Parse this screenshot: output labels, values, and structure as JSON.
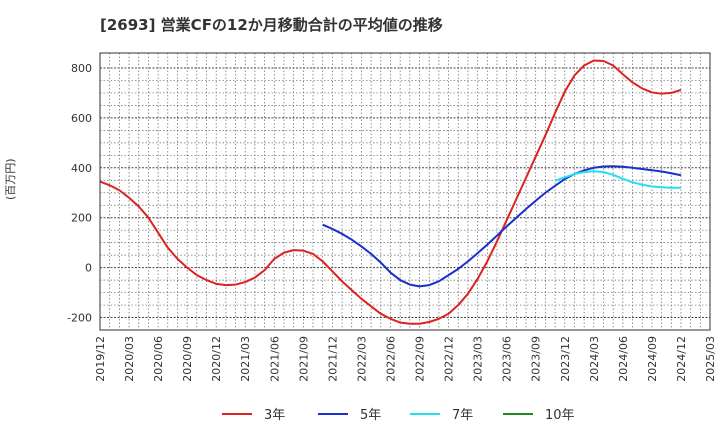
{
  "chart_data": {
    "type": "line",
    "title": "[2693]  営業CFの12か月移動合計の平均値の推移",
    "ylabel": "(百万円)",
    "xlabel": "",
    "ylim": [
      -250,
      860
    ],
    "yticks": [
      -200,
      0,
      200,
      400,
      600,
      800
    ],
    "xticks": [
      "2019/12",
      "2020/03",
      "2020/06",
      "2020/09",
      "2020/12",
      "2021/03",
      "2021/06",
      "2021/09",
      "2021/12",
      "2022/03",
      "2022/06",
      "2022/09",
      "2022/12",
      "2023/03",
      "2023/06",
      "2023/09",
      "2023/12",
      "2024/03",
      "2024/06",
      "2024/09",
      "2024/12",
      "2025/03"
    ],
    "grid": true,
    "legend_position": "bottom",
    "series": [
      {
        "name": "3年",
        "color": "#dd2222",
        "points": [
          [
            "2019/12",
            345
          ],
          [
            "2020/01",
            330
          ],
          [
            "2020/02",
            310
          ],
          [
            "2020/03",
            280
          ],
          [
            "2020/04",
            245
          ],
          [
            "2020/05",
            200
          ],
          [
            "2020/06",
            140
          ],
          [
            "2020/07",
            80
          ],
          [
            "2020/08",
            35
          ],
          [
            "2020/09",
            0
          ],
          [
            "2020/10",
            -30
          ],
          [
            "2020/11",
            -50
          ],
          [
            "2020/12",
            -65
          ],
          [
            "2021/01",
            -70
          ],
          [
            "2021/02",
            -68
          ],
          [
            "2021/03",
            -58
          ],
          [
            "2021/04",
            -40
          ],
          [
            "2021/05",
            -10
          ],
          [
            "2021/06",
            35
          ],
          [
            "2021/07",
            60
          ],
          [
            "2021/08",
            70
          ],
          [
            "2021/09",
            68
          ],
          [
            "2021/10",
            55
          ],
          [
            "2021/11",
            25
          ],
          [
            "2021/12",
            -15
          ],
          [
            "2022/01",
            -55
          ],
          [
            "2022/02",
            -90
          ],
          [
            "2022/03",
            -125
          ],
          [
            "2022/04",
            -155
          ],
          [
            "2022/05",
            -185
          ],
          [
            "2022/06",
            -205
          ],
          [
            "2022/07",
            -220
          ],
          [
            "2022/08",
            -225
          ],
          [
            "2022/09",
            -225
          ],
          [
            "2022/10",
            -218
          ],
          [
            "2022/11",
            -205
          ],
          [
            "2022/12",
            -185
          ],
          [
            "2023/01",
            -150
          ],
          [
            "2023/02",
            -105
          ],
          [
            "2023/03",
            -45
          ],
          [
            "2023/04",
            25
          ],
          [
            "2023/05",
            105
          ],
          [
            "2023/06",
            190
          ],
          [
            "2023/07",
            275
          ],
          [
            "2023/08",
            360
          ],
          [
            "2023/09",
            445
          ],
          [
            "2023/10",
            530
          ],
          [
            "2023/11",
            620
          ],
          [
            "2023/12",
            705
          ],
          [
            "2024/01",
            770
          ],
          [
            "2024/02",
            810
          ],
          [
            "2024/03",
            830
          ],
          [
            "2024/04",
            828
          ],
          [
            "2024/05",
            810
          ],
          [
            "2024/06",
            775
          ],
          [
            "2024/07",
            742
          ],
          [
            "2024/08",
            718
          ],
          [
            "2024/09",
            702
          ],
          [
            "2024/10",
            697
          ],
          [
            "2024/11",
            700
          ],
          [
            "2024/12",
            712
          ]
        ]
      },
      {
        "name": "5年",
        "color": "#1a2fcc",
        "points": [
          [
            "2021/11",
            172
          ],
          [
            "2021/12",
            155
          ],
          [
            "2022/01",
            135
          ],
          [
            "2022/02",
            112
          ],
          [
            "2022/03",
            85
          ],
          [
            "2022/04",
            55
          ],
          [
            "2022/05",
            20
          ],
          [
            "2022/06",
            -20
          ],
          [
            "2022/07",
            -50
          ],
          [
            "2022/08",
            -68
          ],
          [
            "2022/09",
            -75
          ],
          [
            "2022/10",
            -70
          ],
          [
            "2022/11",
            -55
          ],
          [
            "2022/12",
            -30
          ],
          [
            "2023/01",
            -5
          ],
          [
            "2023/02",
            25
          ],
          [
            "2023/03",
            58
          ],
          [
            "2023/04",
            92
          ],
          [
            "2023/05",
            128
          ],
          [
            "2023/06",
            165
          ],
          [
            "2023/07",
            200
          ],
          [
            "2023/08",
            235
          ],
          [
            "2023/09",
            268
          ],
          [
            "2023/10",
            300
          ],
          [
            "2023/11",
            328
          ],
          [
            "2023/12",
            355
          ],
          [
            "2024/01",
            375
          ],
          [
            "2024/02",
            390
          ],
          [
            "2024/03",
            400
          ],
          [
            "2024/04",
            405
          ],
          [
            "2024/05",
            406
          ],
          [
            "2024/06",
            404
          ],
          [
            "2024/07",
            400
          ],
          [
            "2024/08",
            395
          ],
          [
            "2024/09",
            390
          ],
          [
            "2024/10",
            385
          ],
          [
            "2024/11",
            378
          ],
          [
            "2024/12",
            370
          ]
        ]
      },
      {
        "name": "7年",
        "color": "#22e0f0",
        "points": [
          [
            "2023/11",
            348
          ],
          [
            "2023/12",
            362
          ],
          [
            "2024/01",
            375
          ],
          [
            "2024/02",
            383
          ],
          [
            "2024/03",
            386
          ],
          [
            "2024/04",
            383
          ],
          [
            "2024/05",
            372
          ],
          [
            "2024/06",
            356
          ],
          [
            "2024/07",
            342
          ],
          [
            "2024/08",
            332
          ],
          [
            "2024/09",
            325
          ],
          [
            "2024/10",
            322
          ],
          [
            "2024/11",
            320
          ],
          [
            "2024/12",
            320
          ]
        ]
      },
      {
        "name": "10年",
        "color": "#228822",
        "points": []
      }
    ]
  }
}
